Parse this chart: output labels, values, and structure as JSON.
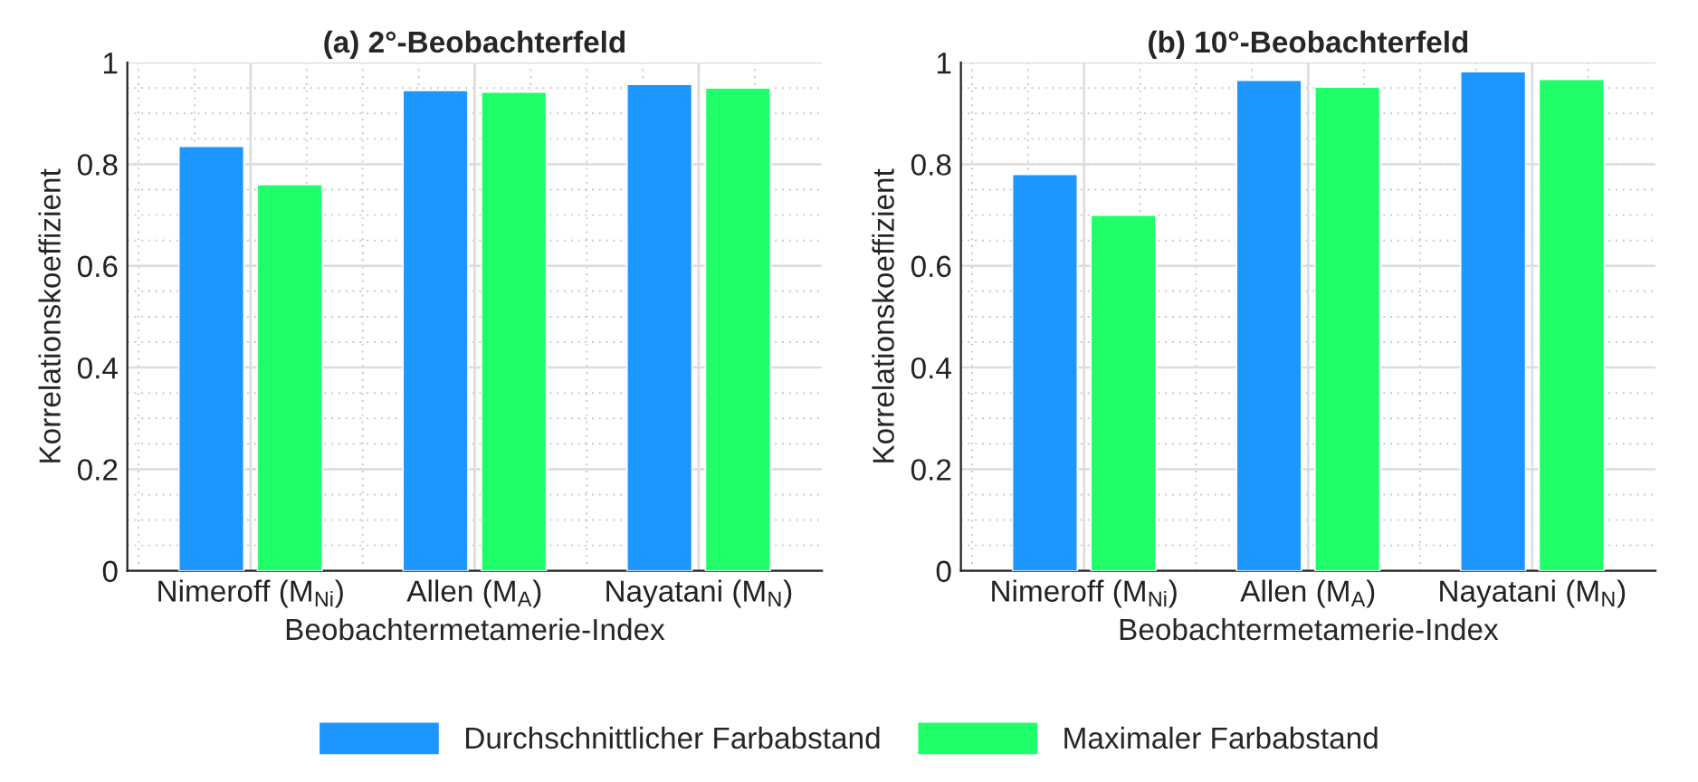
{
  "chart_data": [
    {
      "type": "bar",
      "title": "(a) 2°-Beobachterfeld",
      "xlabel": "Beobachtermetamerie-Index",
      "ylabel": "Korrelationskoeffizient",
      "categories": [
        "Nimeroff (M$_{Ni}$)",
        "Allen (M$_{A}$)",
        "Nayatani (M$_{N}$)"
      ],
      "series": [
        {
          "name": "Durchschnittlicher Farbabstand",
          "color": "#1e96ff",
          "values": [
            0.835,
            0.945,
            0.957
          ]
        },
        {
          "name": "Maximaler Farbabstand",
          "color": "#1eff6a",
          "values": [
            0.76,
            0.942,
            0.95
          ]
        }
      ],
      "ylim": [
        0,
        1
      ],
      "yticks": [
        0,
        0.2,
        0.4,
        0.6,
        0.8,
        1
      ],
      "grid": true,
      "legend": "bottom"
    },
    {
      "type": "bar",
      "title": "(b) 10°-Beobachterfeld",
      "xlabel": "Beobachtermetamerie-Index",
      "ylabel": "Korrelationskoeffizient",
      "categories": [
        "Nimeroff (M$_{Ni}$)",
        "Allen (M$_{A}$)",
        "Nayatani (M$_{N}$)"
      ],
      "series": [
        {
          "color": "#1e96ff",
          "values": [
            0.78,
            0.965,
            0.982
          ]
        },
        {
          "color": "#1eff6a",
          "values": [
            0.7,
            0.952,
            0.967
          ]
        }
      ],
      "ylim": [
        0,
        1
      ],
      "yticks": [
        0,
        0.2,
        0.4,
        0.6,
        0.8,
        1
      ],
      "grid": true
    }
  ]
}
